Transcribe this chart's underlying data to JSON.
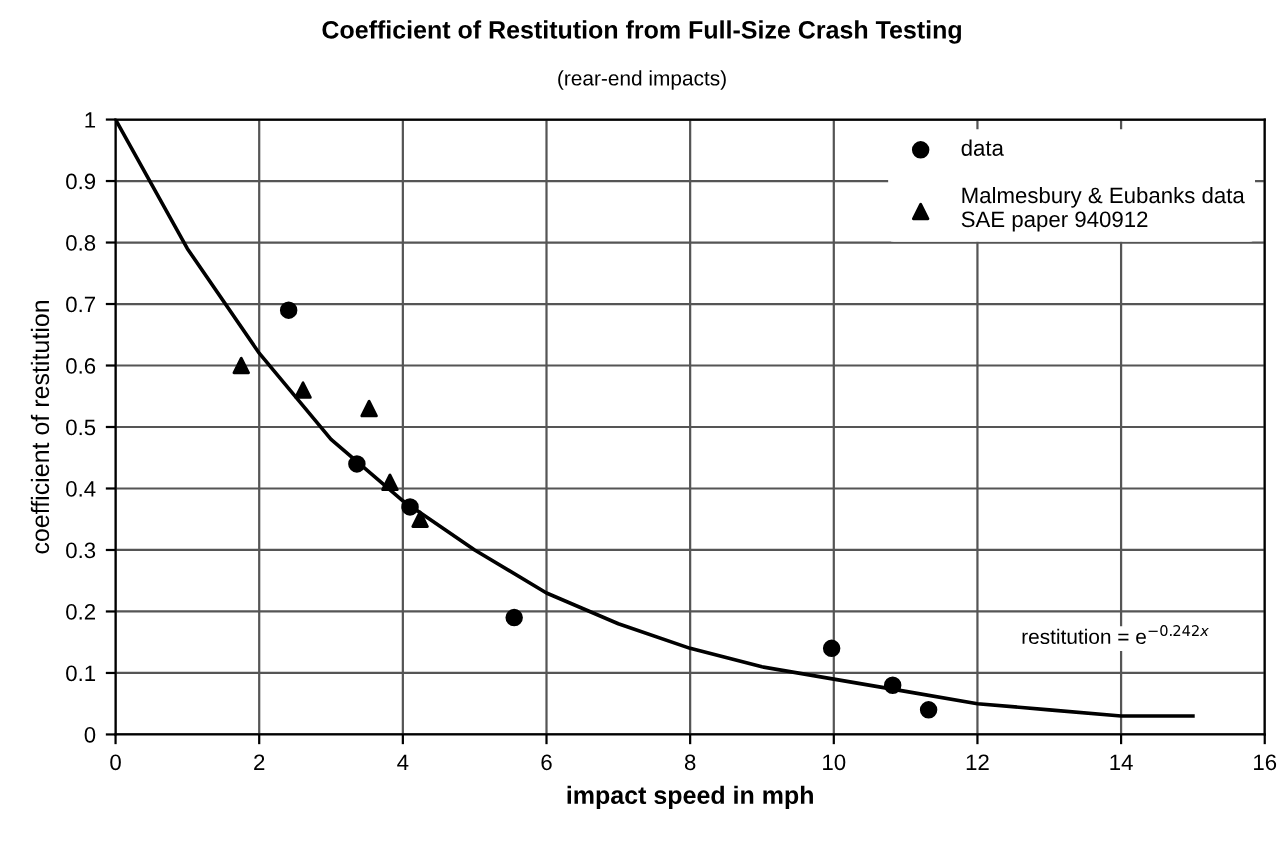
{
  "chart_data": {
    "type": "scatter",
    "title": "Coefficient of Restitution from Full-Size Crash Testing",
    "subtitle": "(rear-end impacts)",
    "xlabel": "impact speed in mph",
    "ylabel": "coefficient of restitution",
    "series": [
      {
        "name": "data",
        "color": "#000000",
        "marker": "circle",
        "x": [
          2.41,
          3.36,
          4.1,
          5.55,
          9.97,
          10.82,
          11.32
        ],
        "values": [
          0.69,
          0.44,
          0.37,
          0.19,
          0.14,
          0.08,
          0.04
        ]
      },
      {
        "name": "Malmesbury & Eubanks data\nSAE paper 940912",
        "color": "#000000",
        "marker": "triangle",
        "x": [
          1.75,
          2.61,
          3.53,
          3.82,
          4.24
        ],
        "values": [
          0.6,
          0.56,
          0.53,
          0.41,
          0.35
        ]
      },
      {
        "type": "line",
        "color": "#000000",
        "marker": "none",
        "x": [
          0,
          1,
          2,
          3,
          4,
          5,
          6,
          7,
          8,
          9,
          10,
          11,
          12,
          13,
          14,
          15
        ],
        "values": [
          1,
          0.79,
          0.62,
          0.48,
          0.38,
          0.3,
          0.23,
          0.18,
          0.14,
          0.11,
          0.09,
          0.07,
          0.05,
          0.04,
          0.03,
          0.03
        ]
      }
    ],
    "annotations": [
      "restitution = e$^{−0.242x}$"
    ],
    "xlim": [
      0,
      16
    ],
    "xticks": [
      0,
      2,
      4,
      6,
      8,
      10,
      12,
      14,
      16
    ],
    "ylim": [
      0,
      1
    ],
    "yticks": [
      0,
      0.1,
      0.2,
      0.3,
      0.4,
      0.5,
      0.6,
      0.7,
      0.8,
      0.9,
      1
    ],
    "grid": true,
    "legend": "top right"
  }
}
